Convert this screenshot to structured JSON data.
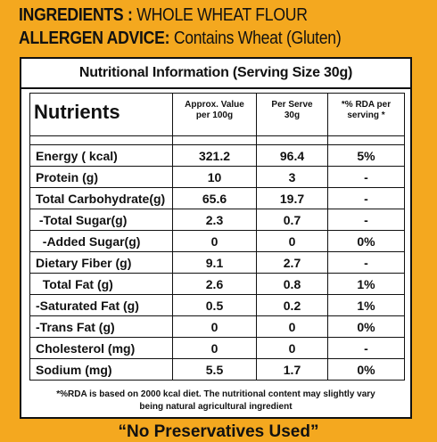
{
  "header": {
    "ingredients_label": "INGREDIENTS :",
    "ingredients_value": "WHOLE WHEAT FLOUR",
    "allergen_label": "ALLERGEN ADVICE:",
    "allergen_value": "Contains  Wheat (Gluten)"
  },
  "panel": {
    "title": "Nutritional Information (Serving Size  30g)",
    "columns": {
      "nutrients": "Nutrients",
      "per100_line1": "Approx. Value",
      "per100_line2": "per 100g",
      "serve_line1": "Per Serve",
      "serve_line2": "30g",
      "rda_line1": "*% RDA  per",
      "rda_line2": "serving *"
    },
    "rows": [
      {
        "name": "Energy ( kcal)",
        "per100": "321.2",
        "serve": "96.4",
        "rda": "5%"
      },
      {
        "name": "Protein (g)",
        "per100": "10",
        "serve": "3",
        "rda": "-"
      },
      {
        "name": "Total Carbohydrate(g)",
        "per100": "65.6",
        "serve": "19.7",
        "rda": "-"
      },
      {
        "name": " -Total Sugar(g)",
        "per100": "2.3",
        "serve": "0.7",
        "rda": "-"
      },
      {
        "name": "  -Added Sugar(g)",
        "per100": "0",
        "serve": "0",
        "rda": "0%"
      },
      {
        "name": "Dietary Fiber (g)",
        "per100": "9.1",
        "serve": "2.7",
        "rda": "-"
      },
      {
        "name": "  Total Fat (g)",
        "per100": "2.6",
        "serve": "0.8",
        "rda": "1%"
      },
      {
        "name": "-Saturated Fat (g)",
        "per100": "0.5",
        "serve": "0.2",
        "rda": "1%"
      },
      {
        "name": "-Trans Fat (g)",
        "per100": "0",
        "serve": "0",
        "rda": "0%"
      },
      {
        "name": "Cholesterol (mg)",
        "per100": "0",
        "serve": "0",
        "rda": "-"
      },
      {
        "name": "Sodium (mg)",
        "per100": "5.5",
        "serve": "1.7",
        "rda": "0%"
      }
    ],
    "footnote_line1": "*%RDA is based on 2000 kcal diet. The nutritional content may slightly vary",
    "footnote_line2": "being natural agricultural ingredient"
  },
  "tagline": "“No Preservatives Used”"
}
